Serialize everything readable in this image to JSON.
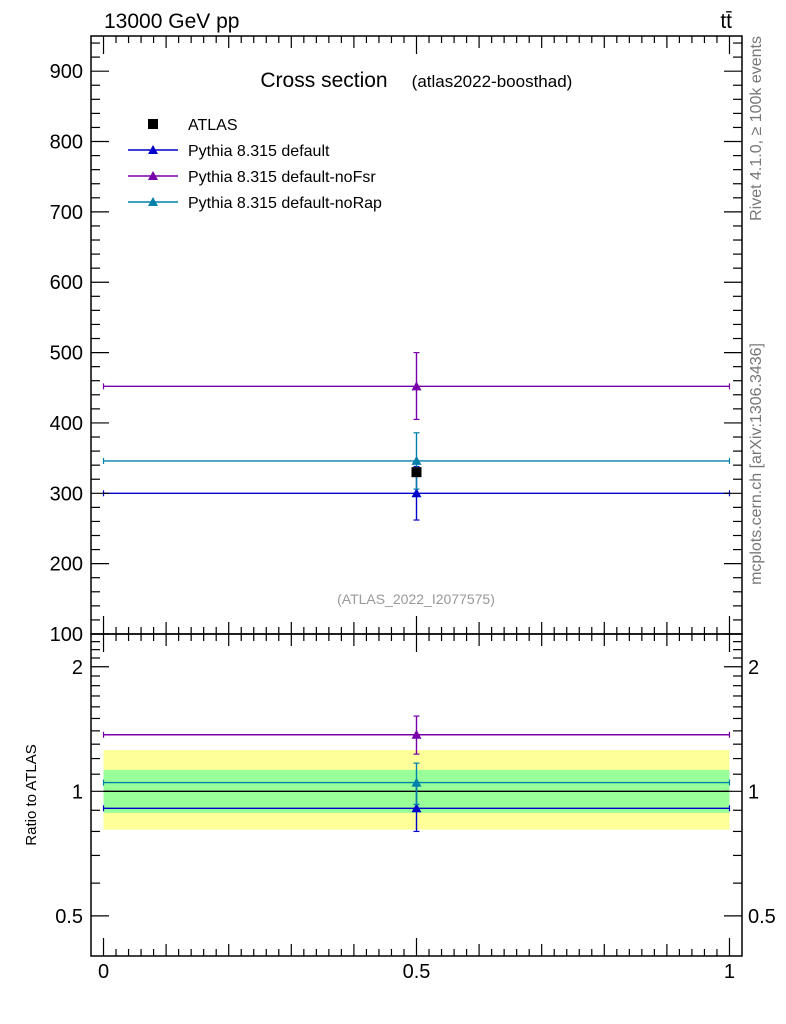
{
  "header": {
    "left": "13000 GeV pp",
    "right": "tt̄"
  },
  "side_text": {
    "rivet": "Rivet 4.1.0, ≥ 100k events",
    "mcplots": "mcplots.cern.ch [arXiv:1306.3436]"
  },
  "chart_data": {
    "type": "scatter",
    "title": "Cross section",
    "subtitle": "(atlas2022-boosthad)",
    "watermark": "(ATLAS_2022_I2077575)",
    "xlim": [
      -0.02,
      1.02
    ],
    "xticks": [
      {
        "v": 0,
        "label": "0"
      },
      {
        "v": 0.5,
        "label": "0.5"
      },
      {
        "v": 1,
        "label": "1"
      }
    ],
    "main": {
      "ylim": [
        100,
        950
      ],
      "yticks": [
        {
          "v": 100,
          "label": "100"
        },
        {
          "v": 200,
          "label": "200"
        },
        {
          "v": 300,
          "label": "300"
        },
        {
          "v": 400,
          "label": "400"
        },
        {
          "v": 500,
          "label": "500"
        },
        {
          "v": 600,
          "label": "600"
        },
        {
          "v": 700,
          "label": "700"
        },
        {
          "v": 800,
          "label": "800"
        },
        {
          "v": 900,
          "label": "900"
        }
      ]
    },
    "ratio": {
      "ylabel": "Ratio to ATLAS",
      "ylim": [
        0.4,
        2.4
      ],
      "yticks": [
        {
          "v": 0.5,
          "label": "0.5"
        },
        {
          "v": 1,
          "label": "1"
        },
        {
          "v": 2,
          "label": "2"
        }
      ],
      "band_inner": [
        0.887,
        1.127
      ],
      "band_outer": [
        0.808,
        1.258
      ]
    },
    "series": [
      {
        "name": "ATLAS",
        "marker": "square",
        "color": "#000000",
        "x": 0.5,
        "y": 330,
        "ratio": 1.0,
        "ratio_err": [
          1.0,
          1.0
        ]
      },
      {
        "name": "Pythia 8.315 default",
        "marker": "triangle",
        "color": "#0000cc",
        "x": 0.5,
        "y": 300,
        "err": [
          262,
          338
        ],
        "xrange": [
          0,
          1
        ],
        "ratio": 0.91,
        "ratio_err": [
          0.8,
          1.03
        ]
      },
      {
        "name": "Pythia 8.315 default-noFsr",
        "marker": "triangle",
        "color": "#7700aa",
        "x": 0.5,
        "y": 452,
        "err": [
          405,
          500
        ],
        "xrange": [
          0,
          1
        ],
        "ratio": 1.37,
        "ratio_err": [
          1.23,
          1.52
        ]
      },
      {
        "name": "Pythia 8.315 default-noRap",
        "marker": "triangle",
        "color": "#0080aa",
        "x": 0.5,
        "y": 346,
        "err": [
          306,
          386
        ],
        "xrange": [
          0,
          1
        ],
        "ratio": 1.05,
        "ratio_err": [
          0.93,
          1.17
        ]
      }
    ]
  }
}
